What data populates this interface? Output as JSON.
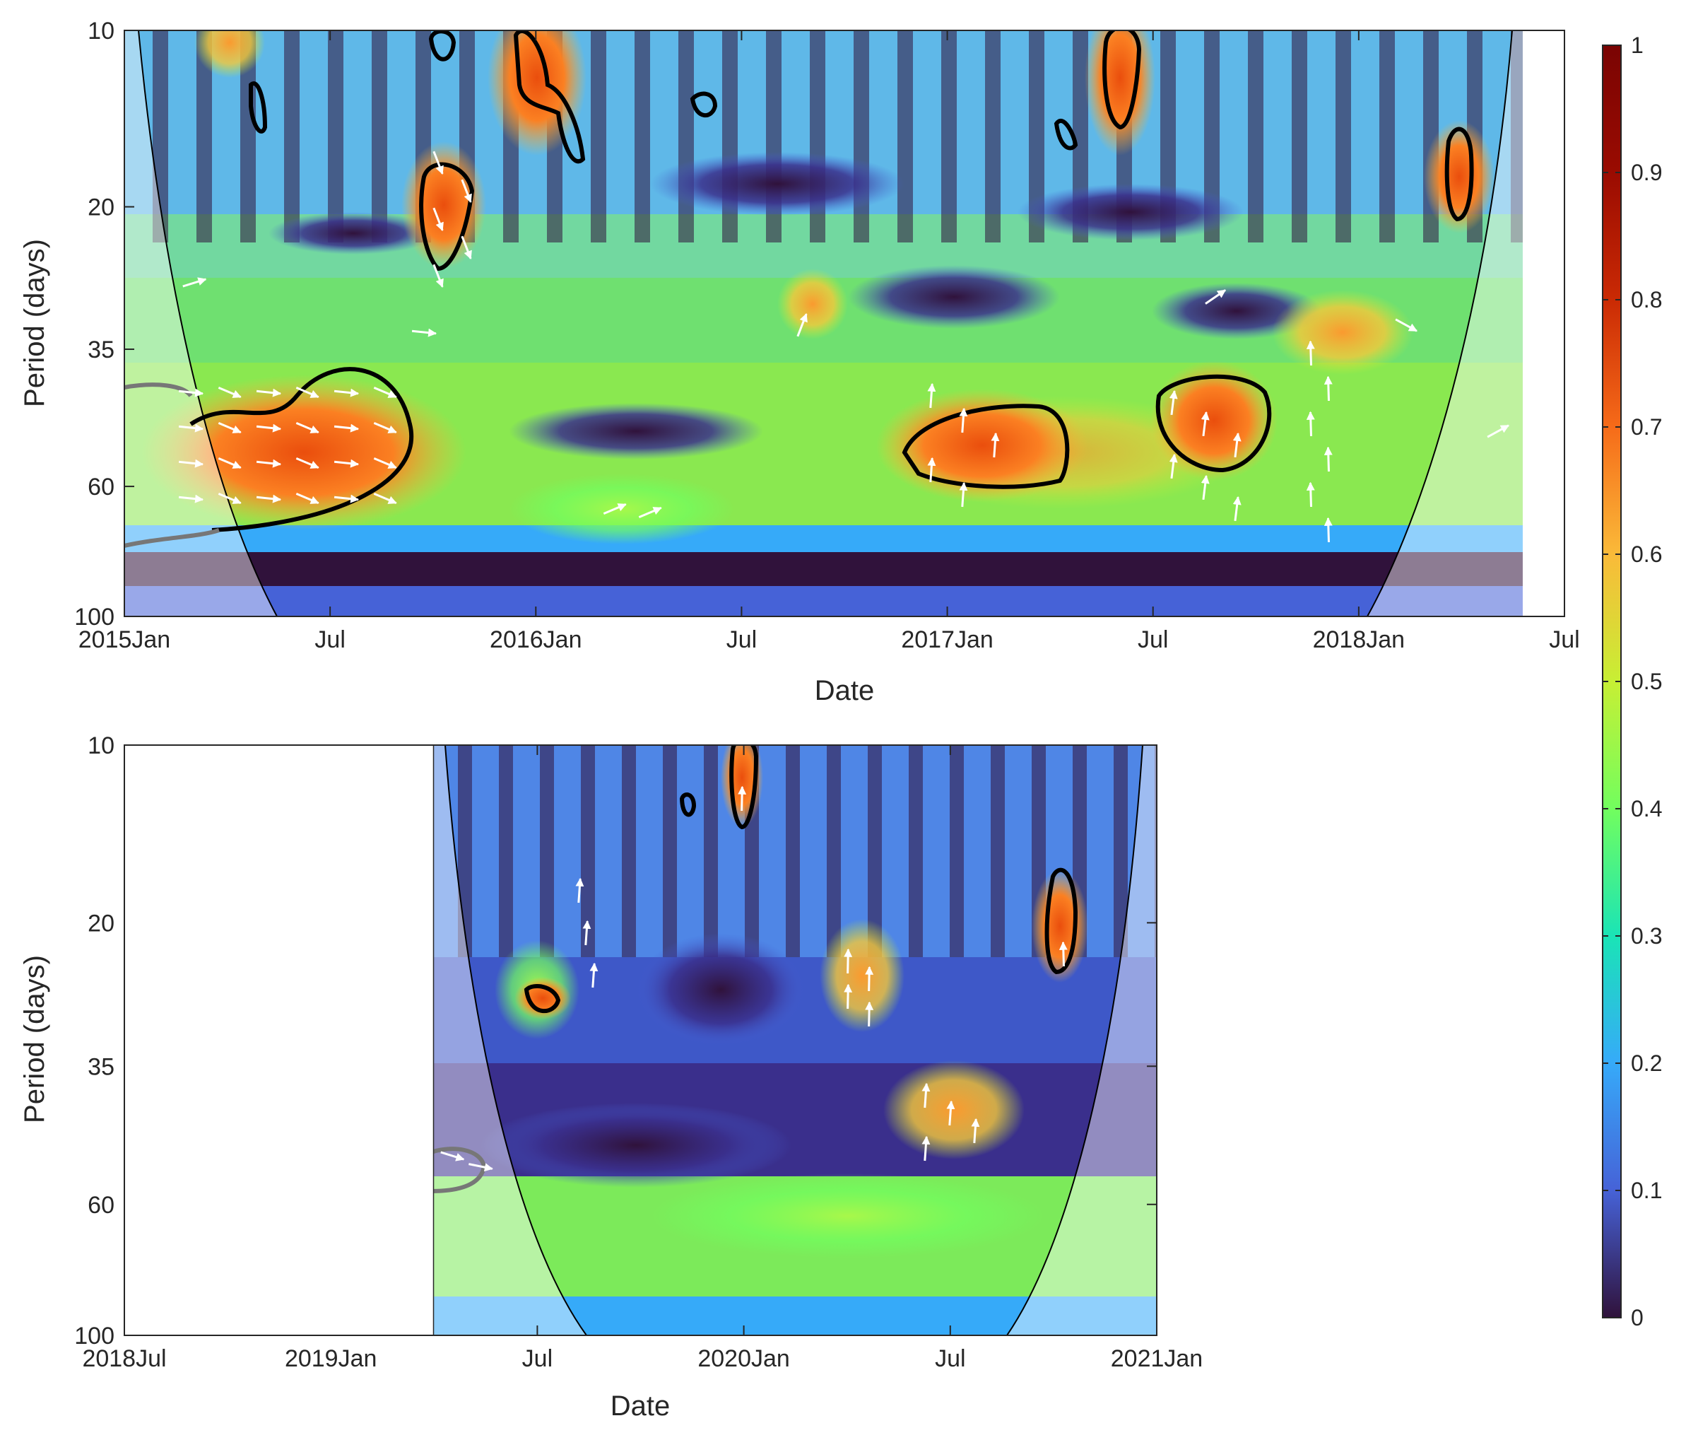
{
  "chart_data": [
    {
      "type": "heatmap",
      "title": "",
      "xlabel": "Date",
      "ylabel": "Period (days)",
      "x_ticks": [
        "2015Jan",
        "Jul",
        "2016Jan",
        "Jul",
        "2017Jan",
        "Jul",
        "2018Jan",
        "Jul"
      ],
      "x_range": [
        "2015-01-01",
        "2018-07-01"
      ],
      "data_end": "2018-05-25",
      "y_scale": "log",
      "y_ticks": [
        "10",
        "20",
        "35",
        "60",
        "100"
      ],
      "ylim": [
        10,
        100
      ],
      "significance_regions": [
        {
          "center": [
            "2015-06-01",
            48
          ],
          "period_range": [
            38,
            68
          ]
        },
        {
          "center": [
            "2015-09-15",
            20
          ],
          "period_range": [
            16.5,
            24.5
          ]
        },
        {
          "center": [
            "2015-09-22",
            10.8
          ],
          "period_range": [
            10,
            11.5
          ]
        },
        {
          "center": [
            "2015-12-20",
            11.5
          ],
          "period_range": [
            10,
            16.5
          ]
        },
        {
          "center": [
            "2015-04-05",
            13.6
          ],
          "period_range": [
            12.5,
            15
          ]
        },
        {
          "center": [
            "2016-05-10",
            13.8
          ],
          "period_range": [
            13.2,
            14.4
          ]
        },
        {
          "center": [
            "2017-03-01",
            50
          ],
          "period_range": [
            43,
            59
          ]
        },
        {
          "center": [
            "2017-10-01",
            45
          ],
          "period_range": [
            39,
            52
          ]
        },
        {
          "center": [
            "2017-05-25",
            12
          ],
          "period_range": [
            10,
            14
          ]
        },
        {
          "center": [
            "2017-04-15",
            15.5
          ],
          "period_range": [
            14.8,
            16.2
          ]
        },
        {
          "center": [
            "2018-04-15",
            18.5
          ],
          "period_range": [
            16,
            21
          ]
        }
      ],
      "colormap": "turbo",
      "arrows": "phase"
    },
    {
      "type": "heatmap",
      "title": "",
      "xlabel": "Date",
      "ylabel": "Period (days)",
      "x_ticks": [
        "2018Jul",
        "2019Jan",
        "Jul",
        "2020Jan",
        "Jul",
        "2021Jan"
      ],
      "x_range": [
        "2018-07-01",
        "2021-01-01"
      ],
      "data_start": "2019-04-01",
      "y_scale": "log",
      "y_ticks": [
        "10",
        "20",
        "35",
        "60",
        "100"
      ],
      "ylim": [
        10,
        100
      ],
      "significance_regions": [
        {
          "center": [
            "2019-12-28",
            11.5
          ],
          "period_range": [
            10,
            13.5
          ]
        },
        {
          "center": [
            "2019-11-05",
            13
          ],
          "period_range": [
            12.3,
            13.8
          ]
        },
        {
          "center": [
            "2019-07-05",
            26.5
          ],
          "period_range": [
            25,
            28
          ]
        },
        {
          "center": [
            "2020-10-20",
            21
          ],
          "period_range": [
            17,
            25
          ]
        }
      ],
      "colormap": "turbo",
      "arrows": "phase"
    }
  ],
  "colorbar": {
    "ticks": [
      "0",
      "0.1",
      "0.2",
      "0.3",
      "0.4",
      "0.5",
      "0.6",
      "0.7",
      "0.8",
      "0.9",
      "1"
    ],
    "range": [
      0,
      1
    ],
    "colormap": "turbo"
  }
}
